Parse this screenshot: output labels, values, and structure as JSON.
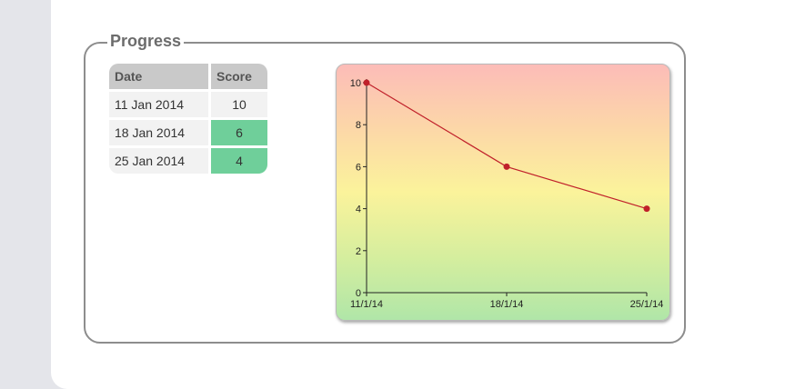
{
  "section": {
    "title": "Progress"
  },
  "table": {
    "headers": {
      "date": "Date",
      "score": "Score"
    },
    "rows": [
      {
        "date": "11 Jan 2014",
        "score": "10",
        "highlight": false
      },
      {
        "date": "18 Jan 2014",
        "score": "6",
        "highlight": true
      },
      {
        "date": "25 Jan 2014",
        "score": "4",
        "highlight": true
      }
    ]
  },
  "colors": {
    "highlight": "#6fcf9a",
    "line": "#c0202a",
    "gradient_top": "#fcbcb8",
    "gradient_mid": "#fbf39b",
    "gradient_bottom": "#b0e6a8"
  },
  "chart_data": {
    "type": "line",
    "title": "",
    "xlabel": "",
    "ylabel": "",
    "x": [
      "11/1/14",
      "18/1/14",
      "25/1/14"
    ],
    "series": [
      {
        "values": [
          10,
          6,
          4
        ]
      }
    ],
    "ylim": [
      0,
      10
    ],
    "yticks": [
      0,
      2,
      4,
      6,
      8,
      10
    ],
    "grid": false,
    "background": "vertical red-yellow-green gradient"
  }
}
